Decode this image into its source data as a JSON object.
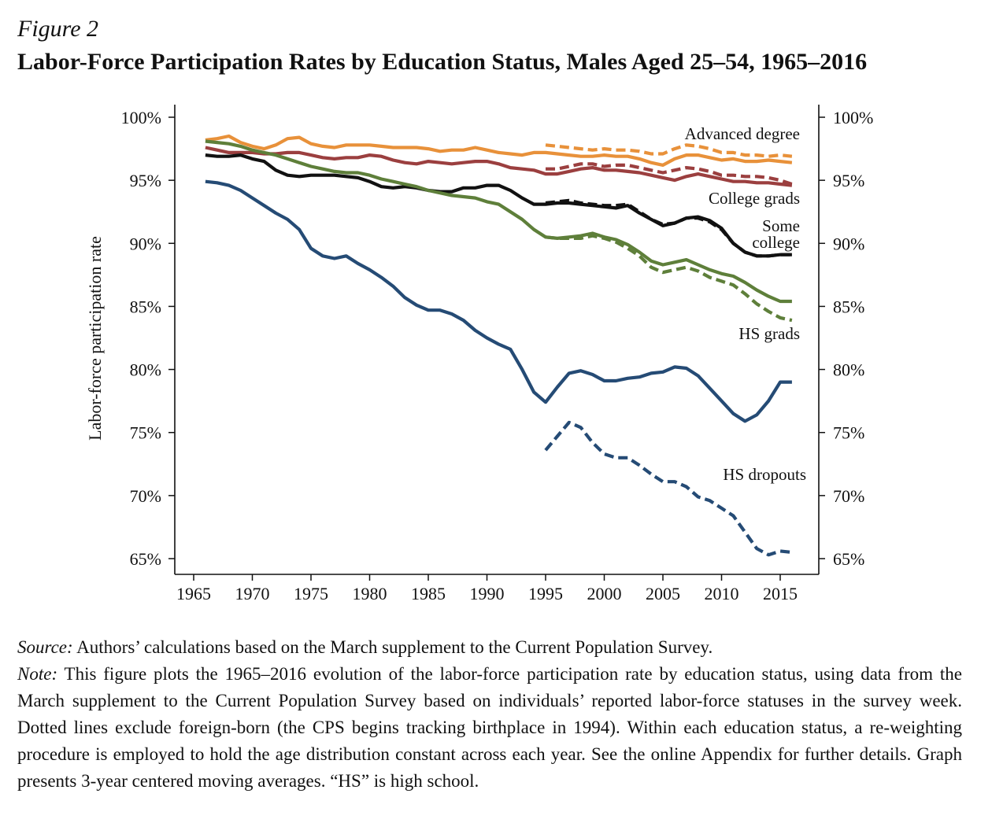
{
  "figure": {
    "label": "Figure 2",
    "title": "Labor-Force Participation Rates by Education Status, Males Aged 25–54, 1965–2016"
  },
  "notes": {
    "source_label": "Source:",
    "source_text": "Authors’ calculations based on the March supplement to the Current Population Survey.",
    "note_label": "Note:",
    "note_text": "This figure plots the 1965–2016 evolution of the labor-force participation rate by education status, using data from the March supplement to the Current Population Survey based on individuals’ reported labor-force statuses in the survey week. Dotted lines exclude foreign-born (the CPS begins tracking birthplace in 1994). Within each education status, a re-weighting procedure is employed to hold the age distribution constant across each year. See the online Appendix for further details. Graph presents 3-year centered moving averages. “HS” is high school."
  },
  "chart_data": {
    "type": "line",
    "ylabel": "Labor-force participation rate",
    "xlabel": "",
    "xlim": [
      1965,
      2016
    ],
    "ylim": [
      65,
      100
    ],
    "xticks": [
      1965,
      1970,
      1975,
      1980,
      1985,
      1990,
      1995,
      2000,
      2005,
      2010,
      2015
    ],
    "xtick_labels": [
      "1965",
      "1970",
      "1975",
      "1980",
      "1985",
      "1990",
      "1995",
      "2000",
      "2005",
      "2010",
      "2015"
    ],
    "yticks": [
      65,
      70,
      75,
      80,
      85,
      90,
      95,
      100
    ],
    "ytick_labels": [
      "65%",
      "70%",
      "75%",
      "80%",
      "85%",
      "90%",
      "95%",
      "100%"
    ],
    "grid": false,
    "legend": "none",
    "annotations": [
      {
        "text": "Advanced degree",
        "series": "advanced"
      },
      {
        "text": "College grads",
        "series": "college"
      },
      {
        "text": "Some",
        "series": "some"
      },
      {
        "text": "college",
        "series": "some"
      },
      {
        "text": "HS grads",
        "series": "hsgrad"
      },
      {
        "text": "HS dropouts",
        "series": "dropout"
      }
    ],
    "series": [
      {
        "id": "advanced",
        "style": "solid",
        "color": "#E8913A",
        "x": [
          1966,
          1967,
          1968,
          1969,
          1970,
          1971,
          1972,
          1973,
          1974,
          1975,
          1976,
          1977,
          1978,
          1979,
          1980,
          1981,
          1982,
          1983,
          1984,
          1985,
          1986,
          1987,
          1988,
          1989,
          1990,
          1991,
          1992,
          1993,
          1994,
          1995,
          1996,
          1997,
          1998,
          1999,
          2000,
          2001,
          2002,
          2003,
          2004,
          2005,
          2006,
          2007,
          2008,
          2009,
          2010,
          2011,
          2012,
          2013,
          2014,
          2015,
          2016
        ],
        "y": [
          98.2,
          98.3,
          98.5,
          98.0,
          97.7,
          97.5,
          97.8,
          98.3,
          98.4,
          97.9,
          97.7,
          97.6,
          97.8,
          97.8,
          97.8,
          97.7,
          97.6,
          97.6,
          97.6,
          97.5,
          97.3,
          97.4,
          97.4,
          97.6,
          97.4,
          97.2,
          97.1,
          97.0,
          97.2,
          97.2,
          97.1,
          97.0,
          96.9,
          96.9,
          97.0,
          96.9,
          96.9,
          96.7,
          96.4,
          96.2,
          96.7,
          97.0,
          97.0,
          96.8,
          96.6,
          96.7,
          96.5,
          96.5,
          96.6,
          96.5,
          96.4
        ]
      },
      {
        "id": "advanced-nb",
        "style": "dashed",
        "color": "#E8913A",
        "x": [
          1995,
          1996,
          1997,
          1998,
          1999,
          2000,
          2001,
          2002,
          2003,
          2004,
          2005,
          2006,
          2007,
          2008,
          2009,
          2010,
          2011,
          2012,
          2013,
          2014,
          2015,
          2016
        ],
        "y": [
          97.8,
          97.7,
          97.6,
          97.5,
          97.4,
          97.5,
          97.4,
          97.4,
          97.3,
          97.1,
          97.1,
          97.5,
          97.8,
          97.7,
          97.5,
          97.2,
          97.2,
          97.0,
          97.0,
          96.9,
          97.0,
          96.9
        ]
      },
      {
        "id": "college",
        "style": "solid",
        "color": "#9B3F3F",
        "x": [
          1966,
          1967,
          1968,
          1969,
          1970,
          1971,
          1972,
          1973,
          1974,
          1975,
          1976,
          1977,
          1978,
          1979,
          1980,
          1981,
          1982,
          1983,
          1984,
          1985,
          1986,
          1987,
          1988,
          1989,
          1990,
          1991,
          1992,
          1993,
          1994,
          1995,
          1996,
          1997,
          1998,
          1999,
          2000,
          2001,
          2002,
          2003,
          2004,
          2005,
          2006,
          2007,
          2008,
          2009,
          2010,
          2011,
          2012,
          2013,
          2014,
          2015,
          2016
        ],
        "y": [
          97.6,
          97.4,
          97.2,
          97.2,
          97.2,
          97.1,
          97.1,
          97.2,
          97.2,
          97.0,
          96.8,
          96.7,
          96.8,
          96.8,
          97.0,
          96.9,
          96.6,
          96.4,
          96.3,
          96.5,
          96.4,
          96.3,
          96.4,
          96.5,
          96.5,
          96.3,
          96.0,
          95.9,
          95.8,
          95.5,
          95.5,
          95.7,
          95.9,
          96.0,
          95.8,
          95.8,
          95.7,
          95.6,
          95.4,
          95.2,
          95.0,
          95.3,
          95.5,
          95.3,
          95.1,
          94.9,
          94.9,
          94.8,
          94.8,
          94.7,
          94.6
        ]
      },
      {
        "id": "college-nb",
        "style": "dashed",
        "color": "#9B3F3F",
        "x": [
          1995,
          1996,
          1997,
          1998,
          1999,
          2000,
          2001,
          2002,
          2003,
          2004,
          2005,
          2006,
          2007,
          2008,
          2009,
          2010,
          2011,
          2012,
          2013,
          2014,
          2015,
          2016
        ],
        "y": [
          95.9,
          95.9,
          96.1,
          96.3,
          96.3,
          96.1,
          96.2,
          96.2,
          96.0,
          95.8,
          95.6,
          95.8,
          96.0,
          95.9,
          95.7,
          95.4,
          95.4,
          95.3,
          95.3,
          95.2,
          95.0,
          94.7
        ]
      },
      {
        "id": "some",
        "style": "solid",
        "color": "#111111",
        "x": [
          1966,
          1967,
          1968,
          1969,
          1970,
          1971,
          1972,
          1973,
          1974,
          1975,
          1976,
          1977,
          1978,
          1979,
          1980,
          1981,
          1982,
          1983,
          1984,
          1985,
          1986,
          1987,
          1988,
          1989,
          1990,
          1991,
          1992,
          1993,
          1994,
          1995,
          1996,
          1997,
          1998,
          1999,
          2000,
          2001,
          2002,
          2003,
          2004,
          2005,
          2006,
          2007,
          2008,
          2009,
          2010,
          2011,
          2012,
          2013,
          2014,
          2015,
          2016
        ],
        "y": [
          97.0,
          96.9,
          96.9,
          97.0,
          96.7,
          96.5,
          95.8,
          95.4,
          95.3,
          95.4,
          95.4,
          95.4,
          95.3,
          95.2,
          94.9,
          94.5,
          94.4,
          94.5,
          94.4,
          94.2,
          94.1,
          94.1,
          94.4,
          94.4,
          94.6,
          94.6,
          94.2,
          93.6,
          93.1,
          93.1,
          93.2,
          93.2,
          93.1,
          93.0,
          92.9,
          92.8,
          93.0,
          92.4,
          91.9,
          91.4,
          91.6,
          92.0,
          92.1,
          91.8,
          91.2,
          90.0,
          89.3,
          89.0,
          89.0,
          89.1,
          89.1
        ]
      },
      {
        "id": "some-nb",
        "style": "dashed",
        "color": "#111111",
        "x": [
          1995,
          1996,
          1997,
          1998,
          1999,
          2000,
          2001,
          2002,
          2003,
          2004,
          2005,
          2006,
          2007,
          2008,
          2009,
          2010,
          2011,
          2012,
          2013,
          2014,
          2015,
          2016
        ],
        "y": [
          93.2,
          93.3,
          93.4,
          93.2,
          93.1,
          93.0,
          93.0,
          93.1,
          92.5,
          91.9,
          91.5,
          91.6,
          92.0,
          92.0,
          91.7,
          91.1,
          90.0,
          89.3,
          89.0,
          89.0,
          89.1,
          89.1
        ]
      },
      {
        "id": "hsgrad",
        "style": "solid",
        "color": "#5E7F3A",
        "x": [
          1966,
          1967,
          1968,
          1969,
          1970,
          1971,
          1972,
          1973,
          1974,
          1975,
          1976,
          1977,
          1978,
          1979,
          1980,
          1981,
          1982,
          1983,
          1984,
          1985,
          1986,
          1987,
          1988,
          1989,
          1990,
          1991,
          1992,
          1993,
          1994,
          1995,
          1996,
          1997,
          1998,
          1999,
          2000,
          2001,
          2002,
          2003,
          2004,
          2005,
          2006,
          2007,
          2008,
          2009,
          2010,
          2011,
          2012,
          2013,
          2014,
          2015,
          2016
        ],
        "y": [
          98.1,
          98.0,
          97.9,
          97.7,
          97.4,
          97.2,
          97.0,
          96.7,
          96.4,
          96.1,
          95.9,
          95.7,
          95.6,
          95.6,
          95.4,
          95.1,
          94.9,
          94.7,
          94.5,
          94.2,
          94.0,
          93.8,
          93.7,
          93.6,
          93.3,
          93.1,
          92.5,
          91.9,
          91.1,
          90.5,
          90.4,
          90.5,
          90.6,
          90.8,
          90.5,
          90.3,
          89.9,
          89.3,
          88.6,
          88.3,
          88.5,
          88.7,
          88.3,
          87.9,
          87.6,
          87.4,
          86.9,
          86.3,
          85.8,
          85.4,
          85.4
        ]
      },
      {
        "id": "hsgrad-nb",
        "style": "dashed",
        "color": "#5E7F3A",
        "x": [
          1995,
          1996,
          1997,
          1998,
          1999,
          2000,
          2001,
          2002,
          2003,
          2004,
          2005,
          2006,
          2007,
          2008,
          2009,
          2010,
          2011,
          2012,
          2013,
          2014,
          2015,
          2016
        ],
        "y": [
          90.5,
          90.4,
          90.4,
          90.4,
          90.6,
          90.4,
          90.1,
          89.6,
          89.0,
          88.1,
          87.7,
          87.9,
          88.1,
          87.8,
          87.3,
          87.0,
          86.7,
          86.0,
          85.2,
          84.6,
          84.1,
          83.9
        ]
      },
      {
        "id": "dropout",
        "style": "solid",
        "color": "#254B75",
        "x": [
          1966,
          1967,
          1968,
          1969,
          1970,
          1971,
          1972,
          1973,
          1974,
          1975,
          1976,
          1977,
          1978,
          1979,
          1980,
          1981,
          1982,
          1983,
          1984,
          1985,
          1986,
          1987,
          1988,
          1989,
          1990,
          1991,
          1992,
          1993,
          1994,
          1995,
          1996,
          1997,
          1998,
          1999,
          2000,
          2001,
          2002,
          2003,
          2004,
          2005,
          2006,
          2007,
          2008,
          2009,
          2010,
          2011,
          2012,
          2013,
          2014,
          2015,
          2016
        ],
        "y": [
          94.9,
          94.8,
          94.6,
          94.2,
          93.6,
          93.0,
          92.4,
          91.9,
          91.1,
          89.6,
          89.0,
          88.8,
          89.0,
          88.4,
          87.9,
          87.3,
          86.6,
          85.7,
          85.1,
          84.7,
          84.7,
          84.4,
          83.9,
          83.1,
          82.5,
          82.0,
          81.6,
          80.0,
          78.2,
          77.4,
          78.6,
          79.7,
          79.9,
          79.6,
          79.1,
          79.1,
          79.3,
          79.4,
          79.7,
          79.8,
          80.2,
          80.1,
          79.5,
          78.5,
          77.5,
          76.5,
          75.9,
          76.4,
          77.5,
          79.0,
          79.0
        ]
      },
      {
        "id": "dropout-nb",
        "style": "dashed",
        "color": "#254B75",
        "x": [
          1995,
          1996,
          1997,
          1998,
          1999,
          2000,
          2001,
          2002,
          2003,
          2004,
          2005,
          2006,
          2007,
          2008,
          2009,
          2010,
          2011,
          2012,
          2013,
          2014,
          2015,
          2016
        ],
        "y": [
          73.6,
          74.7,
          75.8,
          75.4,
          74.2,
          73.3,
          73.0,
          73.0,
          72.4,
          71.7,
          71.1,
          71.1,
          70.7,
          69.9,
          69.6,
          69.0,
          68.4,
          67.1,
          65.8,
          65.3,
          65.6,
          65.5
        ]
      }
    ]
  }
}
